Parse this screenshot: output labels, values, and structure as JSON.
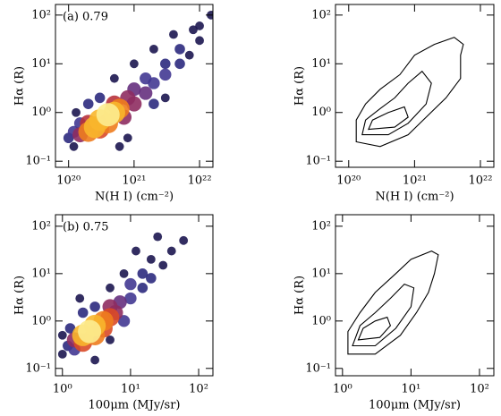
{
  "chart_data": [
    {
      "type": "hist2d",
      "annotation": "(a) 0.79",
      "xlabel": "N(H I) (cm⁻²)",
      "ylabel": "Hα (R)",
      "xscale": "log",
      "yscale": "log",
      "xlim": [
        6.3e+19,
        1.6e+22
      ],
      "ylim": [
        0.075,
        165
      ],
      "xticks": [
        {
          "value": 1e+20,
          "label": "10²⁰"
        },
        {
          "value": 1e+21,
          "label": "10²¹"
        },
        {
          "value": 1e+22,
          "label": "10²²"
        }
      ],
      "yticks": [
        {
          "value": 0.1,
          "label": "10⁻¹"
        },
        {
          "value": 1,
          "label": "10⁰"
        },
        {
          "value": 10,
          "label": "10¹"
        },
        {
          "value": 100,
          "label": "10²"
        }
      ],
      "colormap": [
        "#1c1650",
        "#2c2a7e",
        "#423892",
        "#66307e",
        "#8e2c60",
        "#b8323c",
        "#d94a28",
        "#ee7c1e",
        "#f8b62c",
        "#fcec90"
      ],
      "x": [
        1e+20,
        1.2e+20,
        1.5e+20,
        1.5e+20,
        2e+20,
        2e+20,
        2.5e+20,
        3e+20,
        3e+20,
        4e+20,
        4e+20,
        5e+20,
        5e+20,
        6e+20,
        7e+20,
        8e+20,
        1e+21,
        1e+21,
        1.5e+21,
        1.5e+21,
        2e+21,
        2e+21,
        3e+21,
        3e+21,
        5e+21,
        5e+21,
        7e+21,
        1e+22,
        1e+22,
        3e+20,
        2e+20,
        1.2e+20,
        8e+20,
        6e+20,
        4e+21,
        2e+21,
        1e+21,
        5e+20,
        1.3e+20,
        3e+21,
        1.5e+22,
        8e+21
      ],
      "y": [
        0.3,
        0.4,
        0.35,
        0.6,
        0.4,
        0.6,
        0.5,
        0.7,
        0.45,
        0.9,
        0.6,
        1.0,
        1.5,
        1.2,
        0.8,
        2,
        1.5,
        3,
        2.5,
        5,
        4,
        1.5,
        6,
        10,
        10,
        20,
        15,
        30,
        60,
        2,
        1.5,
        0.2,
        0.3,
        0.2,
        40,
        20,
        10,
        5,
        1,
        2,
        100,
        50
      ],
      "counts": [
        2,
        3,
        5,
        3,
        8,
        6,
        9,
        9,
        7,
        10,
        8,
        9,
        6,
        8,
        5,
        5,
        5,
        4,
        4,
        3,
        3,
        2,
        3,
        2,
        2,
        2,
        1,
        1,
        1,
        2,
        2,
        1,
        1,
        1,
        1,
        1,
        1,
        1,
        1,
        1,
        1,
        1
      ]
    },
    {
      "type": "contour",
      "xlabel": "N(H I) (cm⁻²)",
      "ylabel": "Hα (R)",
      "xscale": "log",
      "yscale": "log",
      "xlim": [
        6.3e+19,
        1.6e+22
      ],
      "ylim": [
        0.075,
        165
      ],
      "xticks": [
        {
          "value": 1e+20,
          "label": "10²⁰"
        },
        {
          "value": 1e+21,
          "label": "10²¹"
        },
        {
          "value": 1e+22,
          "label": "10²²"
        }
      ],
      "yticks": [
        {
          "value": 0.1,
          "label": "10⁻¹"
        },
        {
          "value": 1,
          "label": "10⁰"
        },
        {
          "value": 10,
          "label": "10¹"
        },
        {
          "value": 100,
          "label": "10²"
        }
      ],
      "contours": [
        {
          "x": [
            1.3e+20,
            3e+20,
            8e+20,
            1.5e+21,
            3e+21,
            5e+21,
            5e+21,
            5.5e+21,
            4e+21,
            2e+21,
            1e+21,
            6e+20,
            3e+20,
            1.8e+20,
            1.3e+20
          ],
          "y": [
            0.25,
            0.2,
            0.35,
            0.8,
            2,
            5,
            15,
            25,
            35,
            25,
            15,
            6,
            3,
            1.5,
            0.7
          ]
        },
        {
          "x": [
            1.6e+20,
            4e+20,
            8e+20,
            1.5e+21,
            1.8e+21,
            1.3e+21,
            8e+20,
            5e+20,
            3e+20,
            1.8e+20
          ],
          "y": [
            0.35,
            0.35,
            0.6,
            1.5,
            4,
            7,
            4,
            2,
            1.2,
            0.7
          ]
        },
        {
          "x": [
            2e+20,
            5e+20,
            8e+20,
            7e+20,
            4e+20,
            2.3e+20
          ],
          "y": [
            0.45,
            0.5,
            0.8,
            1.3,
            1,
            0.7
          ]
        }
      ]
    },
    {
      "type": "hist2d",
      "annotation": "(b) 0.75",
      "xlabel": "100μm (MJy/sr)",
      "ylabel": "Hα (R)",
      "xscale": "log",
      "yscale": "log",
      "xlim": [
        0.79,
        162
      ],
      "ylim": [
        0.07,
        175
      ],
      "xticks": [
        {
          "value": 1,
          "label": "10⁰"
        },
        {
          "value": 10,
          "label": "10¹"
        },
        {
          "value": 100,
          "label": "10²"
        }
      ],
      "yticks": [
        {
          "value": 0.1,
          "label": "10⁻¹"
        },
        {
          "value": 1,
          "label": "10⁰"
        },
        {
          "value": 10,
          "label": "10¹"
        },
        {
          "value": 100,
          "label": "10²"
        }
      ],
      "colormap": [
        "#1c1650",
        "#2c2a7e",
        "#423892",
        "#66307e",
        "#8e2c60",
        "#b8323c",
        "#d94a28",
        "#ee7c1e",
        "#f8b62c",
        "#fcec90"
      ],
      "x": [
        1,
        1.2,
        1.5,
        1.5,
        2,
        2,
        2.5,
        3,
        3,
        4,
        4,
        5,
        5,
        6,
        7,
        8,
        10,
        10,
        15,
        15,
        20,
        20,
        30,
        40,
        60,
        2,
        3,
        1.3,
        5,
        3,
        8,
        5,
        12,
        25,
        1,
        1.8
      ],
      "y": [
        0.2,
        0.3,
        0.4,
        0.25,
        0.5,
        0.35,
        0.6,
        0.8,
        0.5,
        1,
        0.7,
        1.2,
        2,
        1.5,
        2.5,
        1,
        3,
        6,
        5,
        10,
        8,
        20,
        15,
        30,
        50,
        1.5,
        2,
        0.7,
        0.4,
        0.15,
        10,
        5,
        30,
        60,
        0.5,
        3
      ],
      "counts": [
        1,
        2,
        5,
        3,
        9,
        7,
        10,
        9,
        8,
        8,
        7,
        7,
        5,
        5,
        4,
        3,
        3,
        3,
        2,
        2,
        2,
        1,
        1,
        1,
        1,
        2,
        2,
        2,
        1,
        1,
        1,
        1,
        1,
        1,
        1,
        1
      ]
    },
    {
      "type": "contour",
      "xlabel": "100μm (MJy/sr)",
      "ylabel": "Hα (R)",
      "xscale": "log",
      "yscale": "log",
      "xlim": [
        0.79,
        162
      ],
      "ylim": [
        0.07,
        175
      ],
      "xticks": [
        {
          "value": 1,
          "label": "10⁰"
        },
        {
          "value": 10,
          "label": "10¹"
        },
        {
          "value": 100,
          "label": "10²"
        }
      ],
      "yticks": [
        {
          "value": 0.1,
          "label": "10⁻¹"
        },
        {
          "value": 1,
          "label": "10⁰"
        },
        {
          "value": 10,
          "label": "10¹"
        },
        {
          "value": 100,
          "label": "10²"
        }
      ],
      "contours": [
        {
          "x": [
            1.2,
            3,
            7,
            12,
            18,
            22,
            25,
            20,
            10,
            6,
            3,
            1.8,
            1.2
          ],
          "y": [
            0.2,
            0.2,
            0.5,
            1.5,
            4,
            10,
            25,
            30,
            20,
            10,
            4,
            1.5,
            0.6
          ]
        },
        {
          "x": [
            1.4,
            3,
            6,
            10,
            11,
            8,
            5,
            3,
            1.8
          ],
          "y": [
            0.3,
            0.3,
            0.7,
            2,
            5,
            6,
            3,
            1.5,
            0.8
          ]
        },
        {
          "x": [
            1.7,
            3.5,
            5,
            4.5,
            3,
            2
          ],
          "y": [
            0.4,
            0.45,
            0.8,
            1.2,
            1,
            0.7
          ]
        }
      ]
    }
  ]
}
